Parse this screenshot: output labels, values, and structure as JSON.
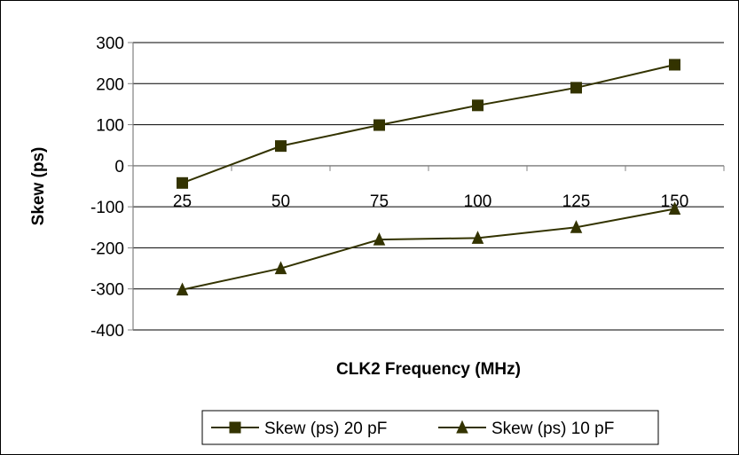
{
  "chart_data": {
    "type": "line",
    "title": "",
    "xlabel": "CLK2 Frequency (MHz)",
    "ylabel": "Skew (ps)",
    "categories": [
      "25",
      "50",
      "75",
      "100",
      "125",
      "150"
    ],
    "ylim": [
      -400,
      300
    ],
    "y_ticks": [
      "300",
      "200",
      "100",
      "0",
      "-100",
      "-200",
      "-300",
      "-400"
    ],
    "grid": true,
    "legend_position": "bottom",
    "series": [
      {
        "name": "Skew (ps) 20 pF",
        "marker": "square",
        "color": "#333300",
        "values": [
          -42,
          48,
          99,
          147,
          190,
          246
        ]
      },
      {
        "name": "Skew (ps) 10 pF",
        "marker": "triangle",
        "color": "#333300",
        "values": [
          -302,
          -250,
          -180,
          -176,
          -150,
          -105
        ]
      }
    ]
  }
}
